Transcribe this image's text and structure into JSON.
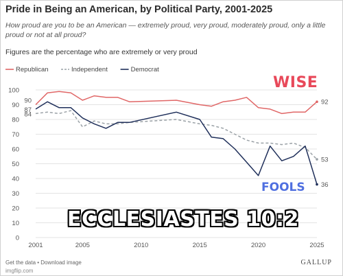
{
  "header": {
    "title": "Pride in Being an American, by Political Party, 2001-2025",
    "subtitle": "How proud are you to be an American — extremely proud, very proud, moderately proud, only a little proud or not at all proud?",
    "note": "Figures are the percentage who are extremely or very proud"
  },
  "footer": {
    "links": "Get the data • Download image",
    "watermark": "imgflip.com",
    "brand": "GALLUP"
  },
  "overlay": {
    "wise": "WISE",
    "fools": "FOOLS",
    "caption": "ECCLESIASTES 10:2"
  },
  "colors": {
    "republican": "#e06666",
    "independent": "#9aa1a6",
    "democrat": "#1f2f5a",
    "grid": "#e3e3e3",
    "axis_text": "#555555"
  },
  "chart_data": {
    "type": "line",
    "x_ticks": [
      2001,
      2005,
      2010,
      2015,
      2020,
      2025
    ],
    "y_ticks": [
      0,
      10,
      20,
      30,
      40,
      50,
      60,
      70,
      80,
      90,
      100
    ],
    "xlim": [
      2001,
      2025
    ],
    "ylim": [
      0,
      100
    ],
    "grid": true,
    "legend_position": "top-left",
    "series": [
      {
        "name": "Republican",
        "color": "#e06666",
        "dash": "solid",
        "points": [
          [
            2001,
            90
          ],
          [
            2002,
            98
          ],
          [
            2003,
            99
          ],
          [
            2004,
            98
          ],
          [
            2005,
            93
          ],
          [
            2006,
            96
          ],
          [
            2007,
            95
          ],
          [
            2008,
            95
          ],
          [
            2009,
            92
          ],
          [
            2013,
            93
          ],
          [
            2015,
            90
          ],
          [
            2016,
            89
          ],
          [
            2017,
            92
          ],
          [
            2018,
            93
          ],
          [
            2019,
            95
          ],
          [
            2020,
            88
          ],
          [
            2021,
            87
          ],
          [
            2022,
            84
          ],
          [
            2023,
            85
          ],
          [
            2024,
            85
          ],
          [
            2025,
            92
          ]
        ],
        "start_label": "90",
        "end_label": "92"
      },
      {
        "name": "Independent",
        "color": "#9aa1a6",
        "dash": "dashed",
        "points": [
          [
            2001,
            84
          ],
          [
            2002,
            85
          ],
          [
            2003,
            84
          ],
          [
            2004,
            86
          ],
          [
            2005,
            75
          ],
          [
            2006,
            79
          ],
          [
            2007,
            77
          ],
          [
            2008,
            77
          ],
          [
            2009,
            78
          ],
          [
            2013,
            80
          ],
          [
            2015,
            77
          ],
          [
            2016,
            76
          ],
          [
            2017,
            74
          ],
          [
            2018,
            70
          ],
          [
            2019,
            66
          ],
          [
            2020,
            64
          ],
          [
            2021,
            64
          ],
          [
            2022,
            63
          ],
          [
            2023,
            64
          ],
          [
            2024,
            61
          ],
          [
            2025,
            53
          ]
        ],
        "start_label": "84",
        "end_label": "53"
      },
      {
        "name": "Democrat",
        "color": "#1f2f5a",
        "dash": "solid",
        "points": [
          [
            2001,
            87
          ],
          [
            2002,
            92
          ],
          [
            2003,
            88
          ],
          [
            2004,
            88
          ],
          [
            2005,
            81
          ],
          [
            2006,
            77
          ],
          [
            2007,
            74
          ],
          [
            2008,
            78
          ],
          [
            2009,
            78
          ],
          [
            2013,
            85
          ],
          [
            2015,
            80
          ],
          [
            2016,
            68
          ],
          [
            2017,
            67
          ],
          [
            2018,
            60
          ],
          [
            2019,
            51
          ],
          [
            2020,
            42
          ],
          [
            2021,
            62
          ],
          [
            2022,
            52
          ],
          [
            2023,
            55
          ],
          [
            2024,
            62
          ],
          [
            2025,
            36
          ]
        ],
        "start_label": "87",
        "end_label": "36"
      }
    ]
  }
}
